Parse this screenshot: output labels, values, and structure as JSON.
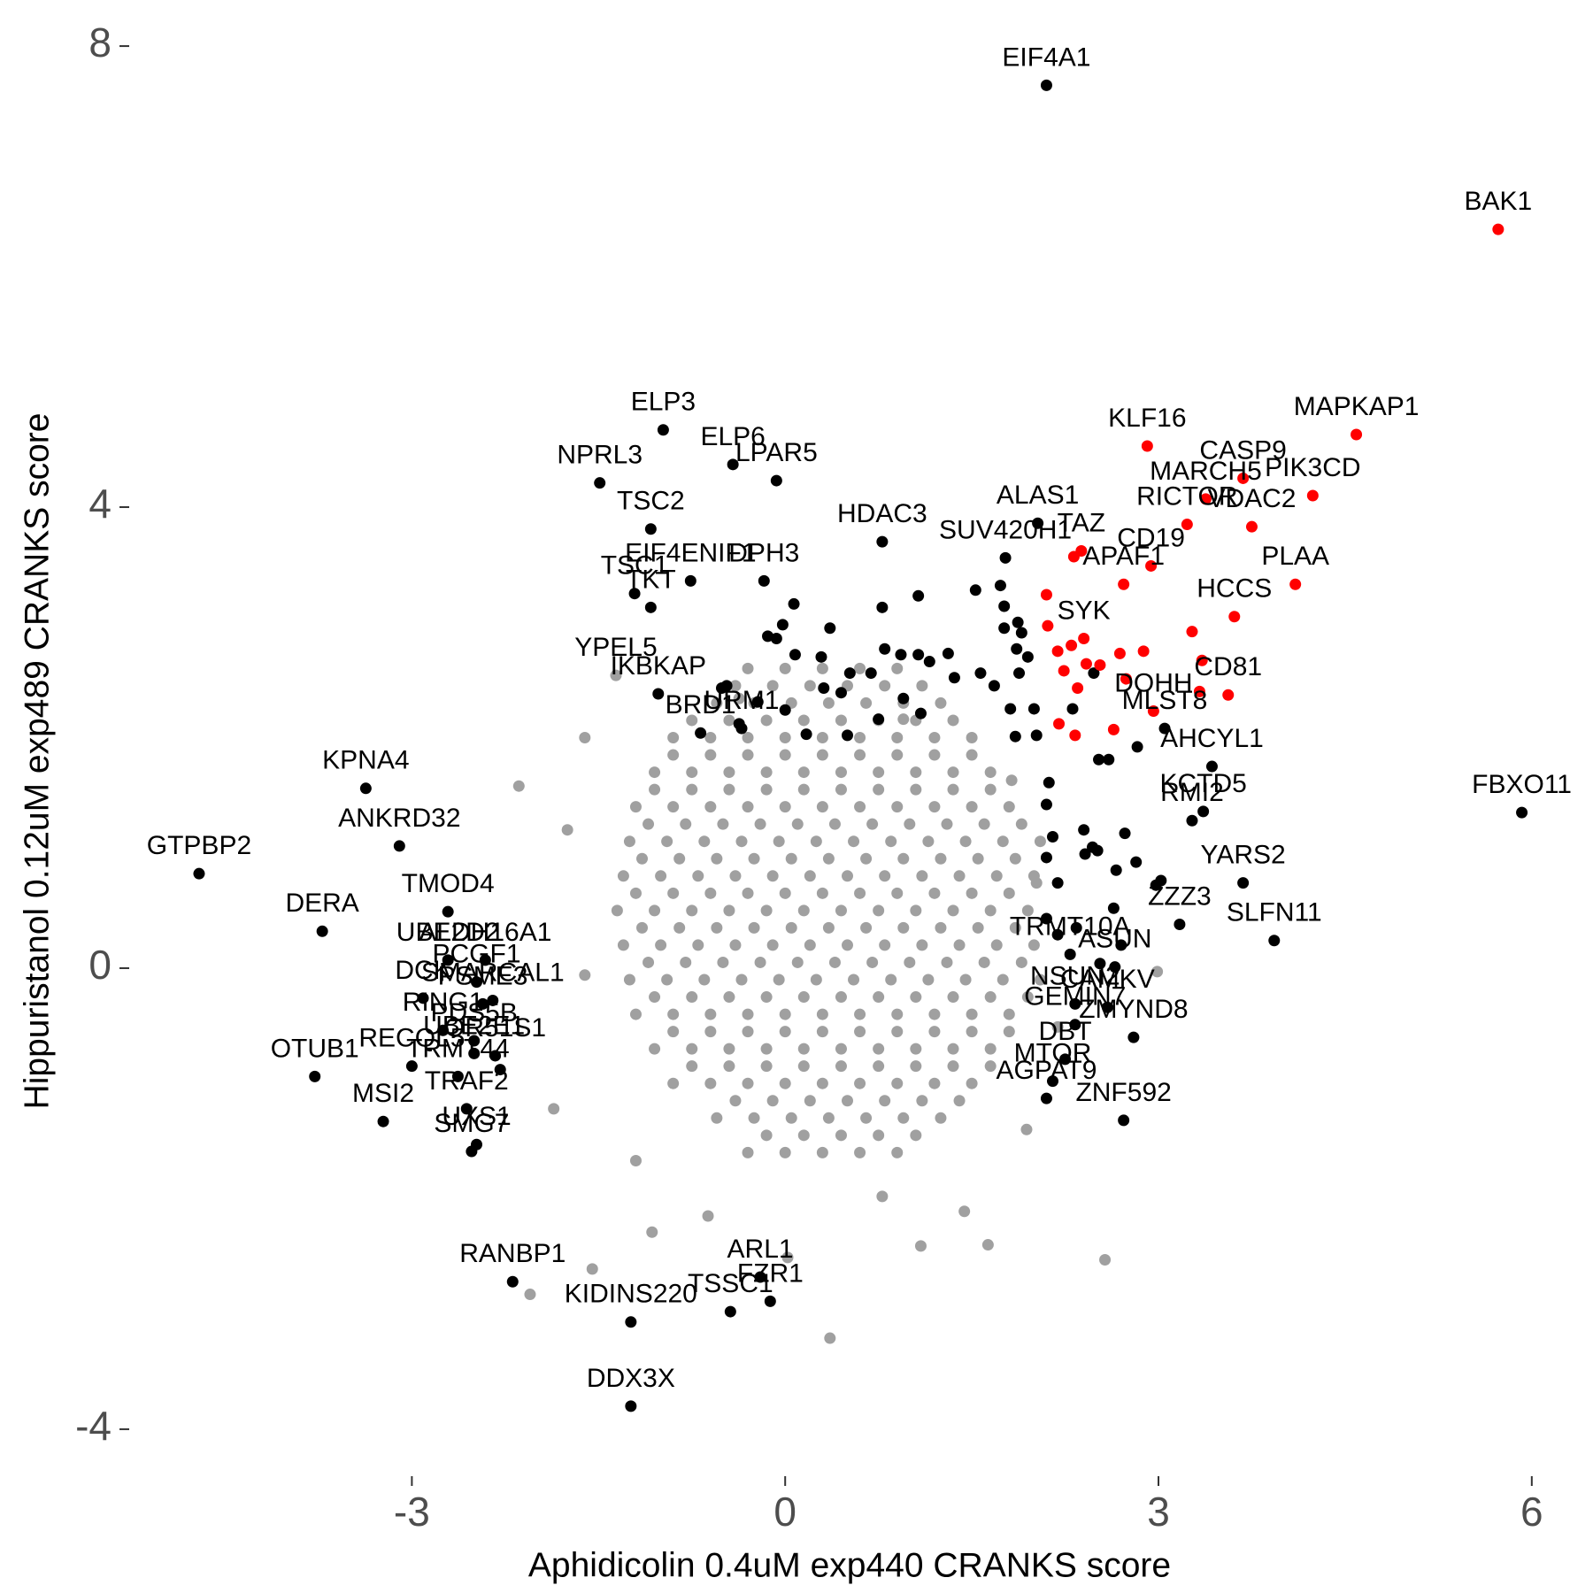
{
  "chart_data": {
    "type": "scatter",
    "xlabel": "Aphidicolin 0.4uM exp440 CRANKS score",
    "ylabel": "Hippuristanol 0.12uM exp489 CRANKS score",
    "xlim": [
      -5.3,
      6.3
    ],
    "xticks": [
      -3,
      0,
      3,
      6
    ],
    "ylim": [
      -4.3,
      8.3
    ],
    "yticks": [
      -4,
      0,
      4,
      8
    ],
    "grid": false,
    "series": [
      {
        "color": "#a0a0a0",
        "x": [
          -0.3,
          0,
          0.3,
          0.6,
          0.9,
          -0.55,
          -0.25,
          0.05,
          0.35,
          0.65,
          0.95,
          1.25,
          -0.9,
          -0.6,
          -0.3,
          0,
          0.3,
          0.6,
          0.9,
          1.2,
          1.5,
          -1.05,
          -0.75,
          -0.45,
          -0.15,
          0.15,
          0.45,
          0.75,
          1.05,
          1.35,
          1.65,
          -1.2,
          -0.9,
          -0.6,
          -0.3,
          0,
          0.3,
          0.6,
          0.9,
          1.2,
          1.5,
          1.8,
          -1.25,
          -0.95,
          -0.65,
          -0.35,
          -0.05,
          0.25,
          0.55,
          0.85,
          1.15,
          1.45,
          1.75,
          2.05,
          -1.3,
          -1.0,
          -0.7,
          -0.4,
          -0.1,
          0.2,
          0.5,
          0.8,
          1.1,
          1.4,
          1.7,
          2.0,
          -1.35,
          -1.05,
          -0.75,
          -0.45,
          -0.15,
          0.15,
          0.45,
          0.75,
          1.05,
          1.35,
          1.65,
          1.95,
          -1.3,
          -1.0,
          -0.7,
          -0.4,
          -0.1,
          0.2,
          0.5,
          0.8,
          1.1,
          1.4,
          1.7,
          2.0,
          -1.25,
          -0.95,
          -0.65,
          -0.35,
          -0.05,
          0.25,
          0.55,
          0.85,
          1.15,
          1.45,
          1.75,
          2.05,
          -1.2,
          -0.9,
          -0.6,
          -0.3,
          0,
          0.3,
          0.6,
          0.9,
          1.2,
          1.5,
          1.8,
          -1.05,
          -0.75,
          -0.45,
          -0.15,
          0.15,
          0.45,
          0.75,
          1.05,
          1.35,
          1.65,
          -0.9,
          -0.6,
          -0.3,
          0,
          0.3,
          0.6,
          0.9,
          1.2,
          1.5,
          -0.55,
          -0.25,
          0.05,
          0.35,
          0.65,
          0.95,
          1.25,
          -0.3,
          0,
          0.3,
          0.6,
          0.9,
          -0.15,
          0.15,
          0.45,
          0.75,
          1.05,
          -0.4,
          -0.1,
          0.2,
          0.5,
          0.8,
          1.1,
          1.4,
          -0.75,
          -0.45,
          -0.15,
          0.15,
          0.45,
          0.75,
          1.05,
          1.35,
          1.65,
          -0.9,
          -0.6,
          -0.3,
          0,
          0.3,
          0.6,
          0.9,
          1.2,
          1.5,
          1.8,
          -1.05,
          -0.75,
          -0.45,
          -0.15,
          0.15,
          0.45,
          0.75,
          1.05,
          1.35,
          1.65,
          1.95,
          -1.1,
          -0.8,
          -0.5,
          -0.2,
          0.1,
          0.4,
          0.7,
          1.0,
          1.3,
          1.6,
          1.9,
          -1.15,
          -0.85,
          -0.55,
          -0.25,
          0.05,
          0.35,
          0.65,
          0.95,
          1.25,
          1.55,
          1.85,
          -1.2,
          -0.9,
          -0.6,
          -0.3,
          0,
          0.3,
          0.6,
          0.9,
          1.2,
          1.5,
          1.8,
          -1.15,
          -0.85,
          -0.55,
          -0.25,
          0.05,
          0.35,
          0.65,
          0.95,
          1.25,
          1.55,
          1.85,
          -1.1,
          -0.8,
          -0.5,
          -0.2,
          0.1,
          0.4,
          0.7,
          1.0,
          1.3,
          1.6,
          1.9,
          -1.05,
          -0.75,
          -0.45,
          -0.15,
          0.15,
          0.45,
          0.75,
          1.05,
          1.35,
          1.65,
          -0.9,
          -0.6,
          -0.3,
          0,
          0.3,
          0.6,
          0.9,
          1.2,
          1.5,
          -0.75,
          -0.45,
          -0.15,
          0.15,
          0.45,
          0.75,
          1.05,
          1.35,
          -0.4,
          -0.1,
          0.2,
          0.5,
          0.8,
          1.1,
          -2.14,
          -1.61,
          -1.75,
          1.09,
          1.63,
          2.57,
          0.02,
          -1.55,
          -2.05,
          0.36,
          2.99,
          -1.07,
          -0.62,
          0.78,
          1.44,
          1.94,
          2.02,
          1.82,
          -1.61,
          -1.86,
          -0.37,
          0.95,
          -1.2,
          2.19
        ],
        "y": [
          -1.6,
          -1.6,
          -1.6,
          -1.6,
          -1.6,
          -1.3,
          -1.3,
          -1.3,
          -1.3,
          -1.3,
          -1.3,
          -1.3,
          -1.0,
          -1.0,
          -1.0,
          -1.0,
          -1.0,
          -1.0,
          -1.0,
          -1.0,
          -1.0,
          -0.7,
          -0.7,
          -0.7,
          -0.7,
          -0.7,
          -0.7,
          -0.7,
          -0.7,
          -0.7,
          -0.7,
          -0.4,
          -0.4,
          -0.4,
          -0.4,
          -0.4,
          -0.4,
          -0.4,
          -0.4,
          -0.4,
          -0.4,
          -0.4,
          -0.1,
          -0.1,
          -0.1,
          -0.1,
          -0.1,
          -0.1,
          -0.1,
          -0.1,
          -0.1,
          -0.1,
          -0.1,
          -0.1,
          0.2,
          0.2,
          0.2,
          0.2,
          0.2,
          0.2,
          0.2,
          0.2,
          0.2,
          0.2,
          0.2,
          0.2,
          0.5,
          0.5,
          0.5,
          0.5,
          0.5,
          0.5,
          0.5,
          0.5,
          0.5,
          0.5,
          0.5,
          0.5,
          0.8,
          0.8,
          0.8,
          0.8,
          0.8,
          0.8,
          0.8,
          0.8,
          0.8,
          0.8,
          0.8,
          0.8,
          1.1,
          1.1,
          1.1,
          1.1,
          1.1,
          1.1,
          1.1,
          1.1,
          1.1,
          1.1,
          1.1,
          1.1,
          1.4,
          1.4,
          1.4,
          1.4,
          1.4,
          1.4,
          1.4,
          1.4,
          1.4,
          1.4,
          1.4,
          1.7,
          1.7,
          1.7,
          1.7,
          1.7,
          1.7,
          1.7,
          1.7,
          1.7,
          1.7,
          2.0,
          2.0,
          2.0,
          2.0,
          2.0,
          2.0,
          2.0,
          2.0,
          2.0,
          2.3,
          2.3,
          2.3,
          2.3,
          2.3,
          2.3,
          2.3,
          2.6,
          2.6,
          2.6,
          2.6,
          2.6,
          -1.45,
          -1.45,
          -1.45,
          -1.45,
          -1.45,
          -1.15,
          -1.15,
          -1.15,
          -1.15,
          -1.15,
          -1.15,
          -1.15,
          -0.85,
          -0.85,
          -0.85,
          -0.85,
          -0.85,
          -0.85,
          -0.85,
          -0.85,
          -0.85,
          -0.55,
          -0.55,
          -0.55,
          -0.55,
          -0.55,
          -0.55,
          -0.55,
          -0.55,
          -0.55,
          -0.55,
          -0.25,
          -0.25,
          -0.25,
          -0.25,
          -0.25,
          -0.25,
          -0.25,
          -0.25,
          -0.25,
          -0.25,
          -0.25,
          0.05,
          0.05,
          0.05,
          0.05,
          0.05,
          0.05,
          0.05,
          0.05,
          0.05,
          0.05,
          0.05,
          0.35,
          0.35,
          0.35,
          0.35,
          0.35,
          0.35,
          0.35,
          0.35,
          0.35,
          0.35,
          0.35,
          0.65,
          0.65,
          0.65,
          0.65,
          0.65,
          0.65,
          0.65,
          0.65,
          0.65,
          0.65,
          0.65,
          0.95,
          0.95,
          0.95,
          0.95,
          0.95,
          0.95,
          0.95,
          0.95,
          0.95,
          0.95,
          0.95,
          1.25,
          1.25,
          1.25,
          1.25,
          1.25,
          1.25,
          1.25,
          1.25,
          1.25,
          1.25,
          1.25,
          1.55,
          1.55,
          1.55,
          1.55,
          1.55,
          1.55,
          1.55,
          1.55,
          1.55,
          1.55,
          1.85,
          1.85,
          1.85,
          1.85,
          1.85,
          1.85,
          1.85,
          1.85,
          1.85,
          2.15,
          2.15,
          2.15,
          2.15,
          2.15,
          2.15,
          2.15,
          2.15,
          2.45,
          2.45,
          2.45,
          2.45,
          2.45,
          2.45,
          1.58,
          2.0,
          1.2,
          -2.41,
          -2.4,
          -2.53,
          -2.51,
          -2.61,
          -2.83,
          -3.21,
          -0.03,
          -2.29,
          -2.15,
          -1.98,
          -2.11,
          -1.4,
          0.74,
          1.63,
          -0.06,
          -1.22,
          2.34,
          2.16,
          -1.67,
          -0.51
        ]
      },
      {
        "color": "#a0a0a0",
        "x": [
          -1.36
        ],
        "y": [
          2.54
        ],
        "labels": [
          "YPEL5"
        ]
      },
      {
        "color": "#000000",
        "x": [
          0.07,
          -0.02,
          -0.14,
          -0.07,
          0.08,
          0.29,
          0.36,
          0.78,
          1.07,
          0.8,
          0.93,
          1.07,
          1.16,
          1.31,
          1.36,
          0.31,
          0.52,
          0.69,
          0.45,
          0.5,
          0.75,
          0.95,
          1.09,
          -0.22,
          -0.47,
          -0.51,
          0.0,
          -0.37,
          0.17,
          1.53,
          1.73,
          1.76,
          1.76,
          1.87,
          1.9,
          1.86,
          1.95,
          1.88,
          1.57,
          1.68,
          1.81,
          2.0,
          2.02,
          1.85,
          2.12,
          2.1,
          2.15,
          2.1,
          2.19,
          2.1,
          2.19,
          2.34,
          2.4,
          2.41,
          2.47,
          2.51,
          2.66,
          2.73,
          2.82,
          2.98,
          3.02,
          2.64,
          2.52,
          2.6,
          2.83,
          2.31,
          2.48,
          2.7,
          2.53,
          -2.29
        ],
        "y": [
          3.16,
          2.98,
          2.88,
          2.86,
          2.72,
          2.7,
          2.95,
          3.13,
          3.23,
          2.77,
          2.72,
          2.72,
          2.66,
          2.73,
          2.52,
          2.43,
          2.56,
          2.56,
          2.39,
          2.02,
          2.16,
          2.34,
          2.21,
          2.31,
          2.45,
          2.43,
          2.24,
          2.12,
          2.03,
          3.28,
          3.32,
          3.14,
          2.95,
          3.0,
          2.91,
          2.77,
          2.7,
          2.56,
          2.56,
          2.45,
          2.25,
          2.25,
          2.02,
          2.01,
          1.61,
          1.42,
          1.14,
          0.96,
          0.74,
          0.43,
          0.29,
          0.35,
          1.2,
          0.99,
          1.05,
          1.02,
          0.85,
          1.17,
          0.92,
          0.72,
          0.76,
          0.52,
          1.81,
          1.81,
          1.92,
          2.25,
          2.56,
          0.2,
          0.04,
          -0.88
        ]
      },
      {
        "color": "#000000",
        "labels": [
          "EIF4A1",
          "ELP3",
          "ELP6",
          "LPAR5",
          "NPRL3",
          "TSC2",
          "EIF4ENIF1",
          "HDAC3",
          "ALAS1",
          "SUV420H1",
          "TSC1",
          "TKT",
          "DPH3",
          "IKBKAP",
          "BRD1",
          "URM1",
          "KPNA4",
          "ANKRD32",
          "GTPBP2",
          "DERA",
          "TMOD4",
          "ALDH16A1",
          "UBE2D2",
          "PCGF1",
          "DCK",
          "SMARCAL1",
          "RING1",
          "PDS5B",
          "UBE2E1",
          "OR51S1",
          "RECQL5",
          "OTUB1",
          "TRMT44",
          "TRAF2",
          "MSI2",
          "PSME3",
          "UXS1",
          "SMG7",
          "RANBP1",
          "KIDINS220",
          "TSSC1",
          "ARL1",
          "FZR1",
          "DDX3X",
          "FBXO11",
          "MLST8",
          "AHCYL1",
          "KCTD5",
          "RMI2",
          "YARS2",
          "SLFN11",
          "ZZZ3",
          "TRMT10A",
          "ASUN",
          "CAMKV",
          "NSUN2",
          "GEMIN7",
          "ZMYND8",
          "DBT",
          "MTOR",
          "AGPAT9",
          "ZNF592"
        ],
        "x": [
          2.1,
          -0.98,
          -0.42,
          -0.07,
          -1.49,
          -1.08,
          -0.76,
          0.78,
          2.03,
          1.77,
          -1.21,
          -1.08,
          -0.17,
          -1.02,
          -0.68,
          -0.35,
          -3.37,
          -3.1,
          -4.71,
          -3.72,
          -2.71,
          -2.41,
          -2.71,
          -2.48,
          -2.91,
          -2.35,
          -2.75,
          -2.5,
          -2.5,
          -2.33,
          -3.0,
          -3.78,
          -2.63,
          -2.56,
          -3.23,
          -2.43,
          -2.48,
          -2.52,
          -2.19,
          -1.24,
          -0.44,
          -0.2,
          -0.12,
          -1.24,
          5.92,
          3.05,
          3.43,
          3.36,
          3.27,
          3.68,
          3.93,
          3.17,
          2.29,
          2.65,
          2.59,
          2.33,
          2.33,
          2.8,
          2.25,
          2.15,
          2.1,
          2.72
        ],
        "y": [
          7.66,
          4.67,
          4.37,
          4.23,
          4.21,
          3.81,
          3.36,
          3.7,
          3.86,
          3.56,
          3.25,
          3.13,
          3.36,
          2.38,
          2.04,
          2.08,
          1.56,
          1.06,
          0.82,
          0.32,
          0.49,
          0.07,
          0.07,
          -0.12,
          -0.26,
          -0.28,
          -0.54,
          -0.63,
          -0.74,
          -0.76,
          -0.85,
          -0.94,
          -0.94,
          -1.22,
          -1.33,
          -0.31,
          -1.53,
          -1.59,
          -2.72,
          -3.07,
          -2.98,
          -2.68,
          -2.89,
          -3.8,
          1.35,
          2.08,
          1.75,
          1.36,
          1.28,
          0.74,
          0.24,
          0.38,
          0.12,
          0.01,
          -0.34,
          -0.31,
          -0.49,
          -0.6,
          -0.79,
          -0.98,
          -1.13,
          -1.32
        ]
      },
      {
        "color": "#ff0000",
        "x": [
          2.1,
          2.11,
          2.32,
          2.19,
          2.3,
          2.24,
          2.42,
          2.53,
          2.69,
          2.88,
          2.74,
          2.35,
          2.2,
          2.33,
          2.64,
          3.27,
          3.35,
          3.33
        ],
        "y": [
          3.24,
          2.97,
          3.57,
          2.75,
          2.8,
          2.58,
          2.64,
          2.63,
          2.73,
          2.75,
          2.51,
          2.43,
          2.12,
          2.02,
          2.07,
          2.92,
          2.67,
          2.4
        ]
      },
      {
        "color": "#ff0000",
        "labels": [
          "BAK1",
          "MAPKAP1",
          "KLF16",
          "CASP9",
          "PIK3CD",
          "MARCH5",
          "RICTOR",
          "VDAC2",
          "TAZ",
          "APAF1",
          "CD19",
          "PLAA",
          "HCCS",
          "CD81",
          "DOHH",
          "SYK"
        ],
        "x": [
          5.73,
          4.59,
          2.91,
          3.68,
          4.24,
          3.38,
          3.23,
          3.75,
          2.38,
          2.72,
          2.94,
          4.1,
          3.61,
          3.56,
          2.96,
          2.4
        ],
        "y": [
          6.41,
          4.63,
          4.53,
          4.25,
          4.1,
          4.07,
          3.85,
          3.83,
          3.62,
          3.33,
          3.49,
          3.33,
          3.05,
          2.37,
          2.23,
          2.86
        ]
      }
    ]
  }
}
